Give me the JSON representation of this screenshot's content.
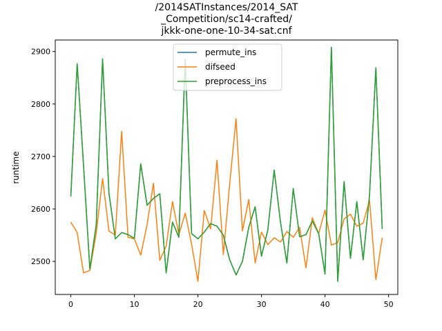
{
  "chart_data": {
    "type": "line",
    "title_lines": [
      "/2014SATInstances/2014_SAT",
      "_Competition/sc14-crafted/",
      "jkkk-one-one-10-34-sat.cnf"
    ],
    "xlabel": "",
    "ylabel": "runtime",
    "xlim": [
      -2.45,
      51.45
    ],
    "ylim": [
      2437,
      2922
    ],
    "x_ticks": [
      0,
      10,
      20,
      30,
      40,
      50
    ],
    "y_ticks": [
      2500,
      2600,
      2700,
      2800,
      2900
    ],
    "legend_position": "upper center",
    "grid": false,
    "x": [
      0,
      1,
      2,
      3,
      4,
      5,
      6,
      7,
      8,
      9,
      10,
      11,
      12,
      13,
      14,
      15,
      16,
      17,
      18,
      19,
      20,
      21,
      22,
      23,
      24,
      25,
      26,
      27,
      28,
      29,
      30,
      31,
      32,
      33,
      34,
      35,
      36,
      37,
      38,
      39,
      40,
      41,
      42,
      43,
      44,
      45,
      46,
      47,
      48,
      49
    ],
    "series": [
      {
        "name": "permute_ins",
        "color": "#1f77b4",
        "values": [
          2624,
          2877,
          2683,
          2485,
          2570,
          2886,
          2630,
          2543,
          2555,
          2551,
          2544,
          2686,
          2607,
          2620,
          2629,
          2478,
          2575,
          2546,
          2886,
          2553,
          2543,
          2556,
          2572,
          2567,
          2550,
          2503,
          2474,
          2500,
          2565,
          2604,
          2510,
          2560,
          2674,
          2574,
          2497,
          2639,
          2547,
          2551,
          2577,
          2553,
          2476,
          2908,
          2462,
          2652,
          2506,
          2614,
          2503,
          2626,
          2869,
          2562
        ]
      },
      {
        "name": "difseed",
        "color": "#ff7f0e",
        "values": [
          2575,
          2555,
          2478,
          2483,
          2554,
          2658,
          2558,
          2550,
          2748,
          2546,
          2543,
          2512,
          2570,
          2649,
          2502,
          2529,
          2614,
          2551,
          2592,
          2533,
          2462,
          2597,
          2562,
          2693,
          2513,
          2648,
          2772,
          2558,
          2618,
          2497,
          2556,
          2532,
          2545,
          2537,
          2557,
          2546,
          2565,
          2488,
          2583,
          2553,
          2598,
          2531,
          2536,
          2581,
          2590,
          2567,
          2573,
          2617,
          2465,
          2545
        ]
      },
      {
        "name": "preprocess_ins",
        "color": "#2ca02c",
        "values": [
          2624,
          2877,
          2683,
          2485,
          2570,
          2886,
          2630,
          2543,
          2555,
          2551,
          2544,
          2686,
          2607,
          2620,
          2629,
          2478,
          2575,
          2546,
          2886,
          2553,
          2543,
          2556,
          2572,
          2567,
          2550,
          2503,
          2474,
          2500,
          2565,
          2604,
          2510,
          2560,
          2674,
          2574,
          2497,
          2639,
          2547,
          2551,
          2577,
          2553,
          2476,
          2908,
          2462,
          2652,
          2506,
          2614,
          2503,
          2626,
          2869,
          2562
        ]
      }
    ]
  }
}
